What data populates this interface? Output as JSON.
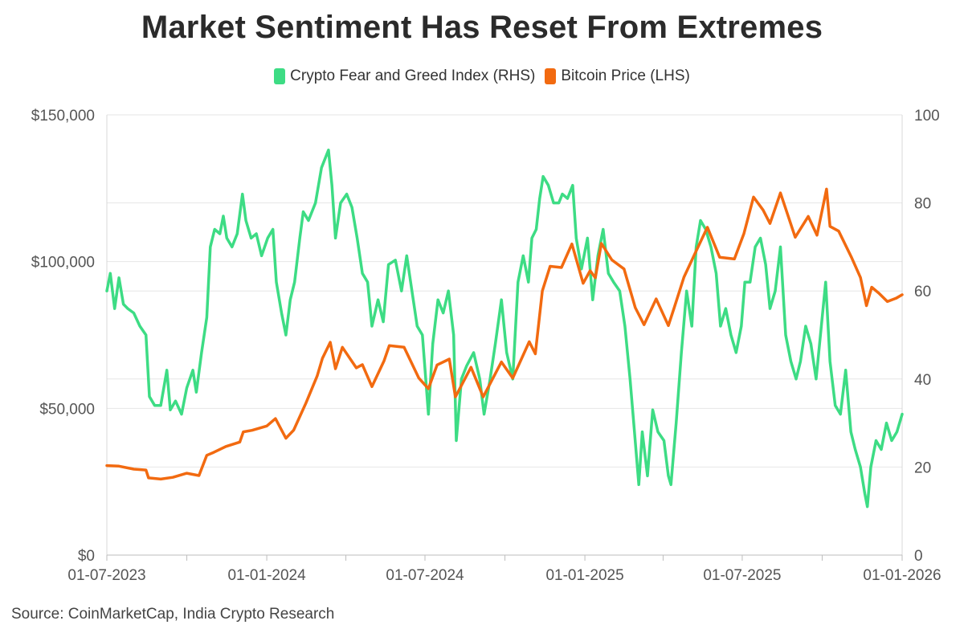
{
  "chart_data": {
    "type": "line",
    "title": "Market Sentiment Has Reset From Extremes",
    "source": "Source: CoinMarketCap, India Crypto Research",
    "legend_placement": "top-center",
    "grid": "horizontal",
    "x_axis": {
      "range": [
        "2023-07-01",
        "2026-01-01"
      ],
      "ticks": [
        {
          "date": "2023-07-01",
          "label": "01-07-2023"
        },
        {
          "date": "2024-01-01",
          "label": "01-01-2024"
        },
        {
          "date": "2024-07-01",
          "label": "01-07-2024"
        },
        {
          "date": "2025-01-01",
          "label": "01-01-2025"
        },
        {
          "date": "2025-07-01",
          "label": "01-07-2025"
        },
        {
          "date": "2026-01-01",
          "label": "01-01-2026"
        }
      ]
    },
    "y_left": {
      "range": [
        0,
        150000
      ],
      "ticks": [
        {
          "value": 0,
          "label": "$0"
        },
        {
          "value": 50000,
          "label": "$50,000"
        },
        {
          "value": 100000,
          "label": "$100,000"
        },
        {
          "value": 150000,
          "label": "$150,000"
        }
      ]
    },
    "y_right": {
      "range": [
        0,
        100
      ],
      "ticks": [
        {
          "value": 0,
          "label": "0"
        },
        {
          "value": 20,
          "label": "20"
        },
        {
          "value": 40,
          "label": "40"
        },
        {
          "value": 60,
          "label": "60"
        },
        {
          "value": 80,
          "label": "80"
        },
        {
          "value": 100,
          "label": "100"
        }
      ]
    },
    "series": [
      {
        "name": "Crypto Fear and Greed Index (RHS)",
        "axis": "right",
        "color": "#3ddc84",
        "points": [
          [
            "2023-07-01",
            60
          ],
          [
            "2023-07-05",
            64
          ],
          [
            "2023-07-10",
            56
          ],
          [
            "2023-07-15",
            63
          ],
          [
            "2023-07-20",
            57
          ],
          [
            "2023-07-25",
            56
          ],
          [
            "2023-08-01",
            55
          ],
          [
            "2023-08-08",
            52
          ],
          [
            "2023-08-15",
            50
          ],
          [
            "2023-08-19",
            36
          ],
          [
            "2023-08-25",
            34
          ],
          [
            "2023-09-01",
            34
          ],
          [
            "2023-09-08",
            42
          ],
          [
            "2023-09-12",
            33
          ],
          [
            "2023-09-18",
            35
          ],
          [
            "2023-09-25",
            32
          ],
          [
            "2023-10-01",
            38
          ],
          [
            "2023-10-08",
            42
          ],
          [
            "2023-10-12",
            37
          ],
          [
            "2023-10-18",
            46
          ],
          [
            "2023-10-24",
            54
          ],
          [
            "2023-10-28",
            70
          ],
          [
            "2023-11-02",
            74
          ],
          [
            "2023-11-08",
            73
          ],
          [
            "2023-11-12",
            77
          ],
          [
            "2023-11-16",
            72
          ],
          [
            "2023-11-22",
            70
          ],
          [
            "2023-11-28",
            73
          ],
          [
            "2023-12-04",
            82
          ],
          [
            "2023-12-08",
            76
          ],
          [
            "2023-12-14",
            72
          ],
          [
            "2023-12-20",
            73
          ],
          [
            "2023-12-26",
            68
          ],
          [
            "2024-01-02",
            72
          ],
          [
            "2024-01-08",
            74
          ],
          [
            "2024-01-12",
            62
          ],
          [
            "2024-01-18",
            55
          ],
          [
            "2024-01-23",
            50
          ],
          [
            "2024-01-28",
            58
          ],
          [
            "2024-02-02",
            62
          ],
          [
            "2024-02-08",
            72
          ],
          [
            "2024-02-12",
            78
          ],
          [
            "2024-02-18",
            76
          ],
          [
            "2024-02-26",
            80
          ],
          [
            "2024-03-04",
            88
          ],
          [
            "2024-03-12",
            92
          ],
          [
            "2024-03-16",
            84
          ],
          [
            "2024-03-20",
            72
          ],
          [
            "2024-03-26",
            80
          ],
          [
            "2024-04-02",
            82
          ],
          [
            "2024-04-08",
            79
          ],
          [
            "2024-04-14",
            72
          ],
          [
            "2024-04-20",
            64
          ],
          [
            "2024-04-26",
            62
          ],
          [
            "2024-05-01",
            52
          ],
          [
            "2024-05-08",
            58
          ],
          [
            "2024-05-14",
            53
          ],
          [
            "2024-05-20",
            66
          ],
          [
            "2024-05-28",
            67
          ],
          [
            "2024-06-04",
            60
          ],
          [
            "2024-06-10",
            68
          ],
          [
            "2024-06-16",
            60
          ],
          [
            "2024-06-22",
            52
          ],
          [
            "2024-06-28",
            50
          ],
          [
            "2024-07-05",
            32
          ],
          [
            "2024-07-10",
            48
          ],
          [
            "2024-07-16",
            58
          ],
          [
            "2024-07-22",
            55
          ],
          [
            "2024-07-28",
            60
          ],
          [
            "2024-08-03",
            50
          ],
          [
            "2024-08-06",
            26
          ],
          [
            "2024-08-12",
            40
          ],
          [
            "2024-08-18",
            43
          ],
          [
            "2024-08-26",
            46
          ],
          [
            "2024-09-02",
            40
          ],
          [
            "2024-09-07",
            32
          ],
          [
            "2024-09-14",
            40
          ],
          [
            "2024-09-20",
            48
          ],
          [
            "2024-09-27",
            58
          ],
          [
            "2024-10-03",
            46
          ],
          [
            "2024-10-10",
            40
          ],
          [
            "2024-10-16",
            62
          ],
          [
            "2024-10-22",
            68
          ],
          [
            "2024-10-28",
            62
          ],
          [
            "2024-11-01",
            72
          ],
          [
            "2024-11-06",
            74
          ],
          [
            "2024-11-10",
            81
          ],
          [
            "2024-11-14",
            86
          ],
          [
            "2024-11-20",
            84
          ],
          [
            "2024-11-26",
            80
          ],
          [
            "2024-12-02",
            80
          ],
          [
            "2024-12-06",
            82
          ],
          [
            "2024-12-12",
            81
          ],
          [
            "2024-12-18",
            84
          ],
          [
            "2024-12-22",
            72
          ],
          [
            "2024-12-28",
            65
          ],
          [
            "2025-01-04",
            72
          ],
          [
            "2025-01-10",
            58
          ],
          [
            "2025-01-16",
            68
          ],
          [
            "2025-01-22",
            74
          ],
          [
            "2025-01-28",
            64
          ],
          [
            "2025-02-03",
            62
          ],
          [
            "2025-02-10",
            60
          ],
          [
            "2025-02-16",
            52
          ],
          [
            "2025-02-22",
            40
          ],
          [
            "2025-02-27",
            28
          ],
          [
            "2025-03-04",
            16
          ],
          [
            "2025-03-08",
            28
          ],
          [
            "2025-03-14",
            18
          ],
          [
            "2025-03-20",
            33
          ],
          [
            "2025-03-26",
            28
          ],
          [
            "2025-04-02",
            26
          ],
          [
            "2025-04-07",
            18
          ],
          [
            "2025-04-10",
            16
          ],
          [
            "2025-04-16",
            30
          ],
          [
            "2025-04-22",
            46
          ],
          [
            "2025-04-28",
            60
          ],
          [
            "2025-05-04",
            52
          ],
          [
            "2025-05-09",
            70
          ],
          [
            "2025-05-14",
            76
          ],
          [
            "2025-05-20",
            74
          ],
          [
            "2025-05-26",
            70
          ],
          [
            "2025-06-01",
            64
          ],
          [
            "2025-06-06",
            52
          ],
          [
            "2025-06-12",
            56
          ],
          [
            "2025-06-18",
            50
          ],
          [
            "2025-06-24",
            46
          ],
          [
            "2025-06-30",
            52
          ],
          [
            "2025-07-04",
            62
          ],
          [
            "2025-07-10",
            62
          ],
          [
            "2025-07-16",
            70
          ],
          [
            "2025-07-22",
            72
          ],
          [
            "2025-07-28",
            66
          ],
          [
            "2025-08-02",
            56
          ],
          [
            "2025-08-08",
            60
          ],
          [
            "2025-08-14",
            70
          ],
          [
            "2025-08-20",
            50
          ],
          [
            "2025-08-26",
            44
          ],
          [
            "2025-09-01",
            40
          ],
          [
            "2025-09-06",
            44
          ],
          [
            "2025-09-12",
            52
          ],
          [
            "2025-09-18",
            48
          ],
          [
            "2025-09-24",
            40
          ],
          [
            "2025-09-30",
            52
          ],
          [
            "2025-10-05",
            62
          ],
          [
            "2025-10-10",
            44
          ],
          [
            "2025-10-16",
            34
          ],
          [
            "2025-10-22",
            32
          ],
          [
            "2025-10-28",
            42
          ],
          [
            "2025-11-03",
            28
          ],
          [
            "2025-11-08",
            24
          ],
          [
            "2025-11-14",
            20
          ],
          [
            "2025-11-19",
            14
          ],
          [
            "2025-11-22",
            11
          ],
          [
            "2025-11-26",
            20
          ],
          [
            "2025-12-02",
            26
          ],
          [
            "2025-12-08",
            24
          ],
          [
            "2025-12-14",
            30
          ],
          [
            "2025-12-20",
            26
          ],
          [
            "2025-12-26",
            28
          ],
          [
            "2026-01-01",
            32
          ]
        ]
      },
      {
        "name": "Bitcoin Price (LHS)",
        "axis": "left",
        "color": "#f26a10",
        "points": [
          [
            "2023-07-01",
            30500
          ],
          [
            "2023-07-15",
            30300
          ],
          [
            "2023-08-01",
            29300
          ],
          [
            "2023-08-15",
            29000
          ],
          [
            "2023-08-18",
            26300
          ],
          [
            "2023-09-01",
            25900
          ],
          [
            "2023-09-15",
            26500
          ],
          [
            "2023-10-01",
            27900
          ],
          [
            "2023-10-15",
            27100
          ],
          [
            "2023-10-24",
            34000
          ],
          [
            "2023-11-01",
            35000
          ],
          [
            "2023-11-15",
            37000
          ],
          [
            "2023-12-01",
            38500
          ],
          [
            "2023-12-05",
            42000
          ],
          [
            "2023-12-15",
            42500
          ],
          [
            "2024-01-01",
            44000
          ],
          [
            "2024-01-11",
            46500
          ],
          [
            "2024-01-23",
            39800
          ],
          [
            "2024-02-01",
            42600
          ],
          [
            "2024-02-15",
            51800
          ],
          [
            "2024-02-28",
            61000
          ],
          [
            "2024-03-05",
            67000
          ],
          [
            "2024-03-14",
            72500
          ],
          [
            "2024-03-20",
            63500
          ],
          [
            "2024-03-28",
            70800
          ],
          [
            "2024-04-13",
            63800
          ],
          [
            "2024-04-20",
            64900
          ],
          [
            "2024-05-01",
            57400
          ],
          [
            "2024-05-15",
            66200
          ],
          [
            "2024-05-21",
            71400
          ],
          [
            "2024-06-07",
            70800
          ],
          [
            "2024-06-24",
            60300
          ],
          [
            "2024-07-05",
            56700
          ],
          [
            "2024-07-15",
            64800
          ],
          [
            "2024-07-29",
            66800
          ],
          [
            "2024-08-05",
            53900
          ],
          [
            "2024-08-23",
            64000
          ],
          [
            "2024-09-06",
            53900
          ],
          [
            "2024-09-27",
            65800
          ],
          [
            "2024-10-10",
            60300
          ],
          [
            "2024-10-29",
            72700
          ],
          [
            "2024-11-05",
            68600
          ],
          [
            "2024-11-13",
            90000
          ],
          [
            "2024-11-22",
            98400
          ],
          [
            "2024-12-05",
            98000
          ],
          [
            "2024-12-17",
            106000
          ],
          [
            "2024-12-30",
            92600
          ],
          [
            "2025-01-07",
            96900
          ],
          [
            "2025-01-13",
            94500
          ],
          [
            "2025-01-20",
            106200
          ],
          [
            "2025-02-01",
            100600
          ],
          [
            "2025-02-15",
            97500
          ],
          [
            "2025-02-28",
            84300
          ],
          [
            "2025-03-10",
            78500
          ],
          [
            "2025-03-24",
            87300
          ],
          [
            "2025-04-07",
            78200
          ],
          [
            "2025-04-14",
            84500
          ],
          [
            "2025-04-25",
            94700
          ],
          [
            "2025-05-08",
            103000
          ],
          [
            "2025-05-22",
            111700
          ],
          [
            "2025-06-05",
            101500
          ],
          [
            "2025-06-22",
            100900
          ],
          [
            "2025-07-03",
            109600
          ],
          [
            "2025-07-14",
            122000
          ],
          [
            "2025-07-25",
            117600
          ],
          [
            "2025-08-02",
            113000
          ],
          [
            "2025-08-14",
            123400
          ],
          [
            "2025-08-31",
            108300
          ],
          [
            "2025-09-15",
            115400
          ],
          [
            "2025-09-25",
            109000
          ],
          [
            "2025-10-06",
            124700
          ],
          [
            "2025-10-10",
            112000
          ],
          [
            "2025-10-20",
            110400
          ],
          [
            "2025-11-04",
            101300
          ],
          [
            "2025-11-14",
            94600
          ],
          [
            "2025-11-21",
            85000
          ],
          [
            "2025-11-27",
            91300
          ],
          [
            "2025-12-05",
            89300
          ],
          [
            "2025-12-15",
            86400
          ],
          [
            "2025-12-25",
            87500
          ],
          [
            "2026-01-01",
            88700
          ]
        ]
      }
    ]
  },
  "legend": [
    {
      "label": "Crypto Fear and Greed Index (RHS)",
      "color": "#3ddc84"
    },
    {
      "label": "Bitcoin Price (LHS)",
      "color": "#f26a10"
    }
  ]
}
